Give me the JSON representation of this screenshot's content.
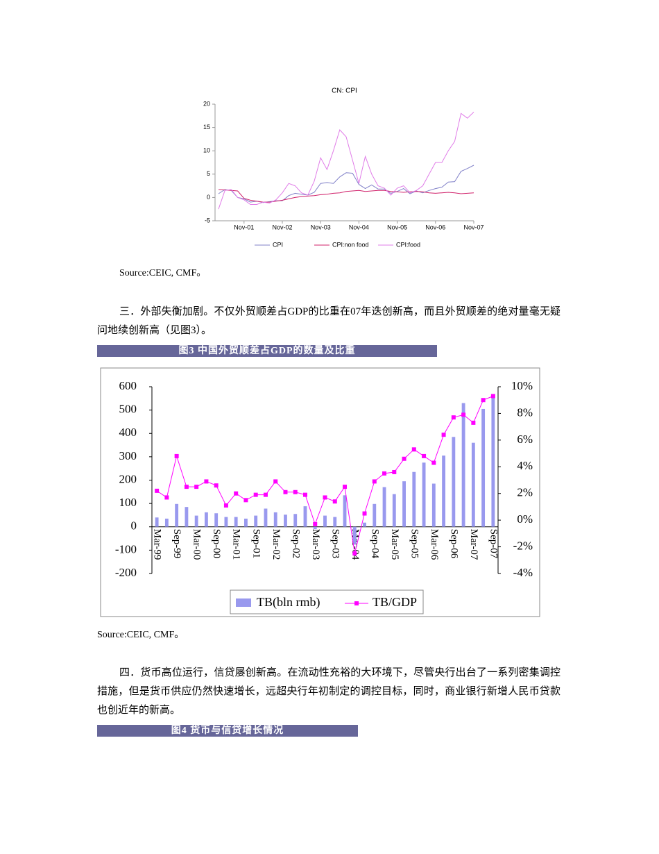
{
  "document": {
    "source_1": "Source:CEIC, CMF。",
    "paragraph_3": "三．外部失衡加剧。不仅外贸顺差占GDP的比重在07年迭创新高，而且外贸顺差的绝对量毫无疑问地续创新高（见图3）。",
    "figure_3_title": "图3 中国外贸顺差占GDP的数量及比重",
    "source_2": "Source:CEIC, CMF。",
    "paragraph_4": "四．货币高位运行，信贷屡创新高。在流动性充裕的大环境下，尽管央行出台了一系列密集调控措施，但是货币供应仍然快速增长，远超央行年初制定的调控目标，同时，商业银行新增人民币贷款也创近年的新高。",
    "figure_4_title": "图4 货币与信贷增长情况"
  },
  "chart_data": [
    {
      "type": "line",
      "title": "CN: CPI",
      "categories": [
        null,
        null,
        null,
        null,
        "Nov-01",
        null,
        null,
        null,
        null,
        null,
        "Nov-02",
        null,
        null,
        null,
        null,
        null,
        "Nov-03",
        null,
        null,
        null,
        null,
        null,
        "Nov-04",
        null,
        null,
        null,
        null,
        null,
        "Nov-05",
        null,
        null,
        null,
        null,
        null,
        "Nov-06",
        null,
        null,
        null,
        null,
        null,
        "Nov-07"
      ],
      "ylim": [
        -5,
        20
      ],
      "yticks": [
        -5,
        0,
        5,
        10,
        15,
        20
      ],
      "series": [
        {
          "name": "CPI",
          "color": "#8080c8",
          "values": [
            0.8,
            1.7,
            1.5,
            0,
            -0.3,
            -1,
            -0.8,
            -1.1,
            -0.9,
            -0.7,
            -0.7,
            0.4,
            0.9,
            0.7,
            0.5,
            1.1,
            3.0,
            3.2,
            3.0,
            4.4,
            5.3,
            5.2,
            2.8,
            1.9,
            2.7,
            1.8,
            1.8,
            0.9,
            1.3,
            1.9,
            0.8,
            1.4,
            1.0,
            1.5,
            1.9,
            2.2,
            3.3,
            3.4,
            5.6,
            6.2,
            6.9
          ]
        },
        {
          "name": "CPI:non food",
          "color": "#d0206a",
          "values": [
            1.7,
            1.6,
            1.5,
            1.4,
            -0.2,
            -0.6,
            -0.8,
            -1.0,
            -1.0,
            -0.8,
            -0.6,
            -0.3,
            0,
            0.2,
            0.3,
            0.4,
            0.6,
            0.7,
            0.9,
            1.0,
            1.3,
            1.4,
            1.5,
            1.3,
            1.4,
            1.5,
            1.5,
            1.3,
            1.2,
            1.1,
            1.2,
            1.3,
            1.2,
            1.0,
            0.9,
            1.0,
            1.1,
            1.0,
            0.8,
            0.9,
            1.0
          ]
        },
        {
          "name": "CPI:food",
          "color": "#e07ce8",
          "values": [
            -2.5,
            1.5,
            1.7,
            0,
            -0.5,
            -1.5,
            -1.5,
            -1.0,
            -1.2,
            -0.5,
            1.0,
            3.0,
            2.5,
            1.0,
            0.5,
            3.5,
            8.5,
            6,
            10,
            14.5,
            13,
            8,
            3,
            8.8,
            5,
            2.5,
            2,
            0.5,
            2,
            2.5,
            1.0,
            1.5,
            2.5,
            5,
            7.5,
            7.5,
            10,
            12,
            18,
            17,
            18.3
          ]
        }
      ]
    },
    {
      "type": "combo",
      "categories": [
        "Mar-99",
        null,
        "Sep-99",
        null,
        "Mar-00",
        null,
        "Sep-00",
        null,
        "Mar-01",
        null,
        "Sep-01",
        null,
        "Mar-02",
        null,
        "Sep-02",
        null,
        "Mar-03",
        null,
        "Sep-03",
        null,
        "Mar-04",
        null,
        "Sep-04",
        null,
        "Mar-05",
        null,
        "Sep-05",
        null,
        "Mar-06",
        null,
        "Sep-06",
        null,
        "Mar-07",
        null,
        "Sep-07"
      ],
      "ylim": [
        -200,
        600
      ],
      "yticks": [
        -200,
        -100,
        0,
        100,
        200,
        300,
        400,
        500,
        600
      ],
      "y2lim": [
        -4,
        10
      ],
      "y2ticks": [
        {
          "value": -4,
          "label": "-4%"
        },
        {
          "value": -2,
          "label": "-2%"
        },
        {
          "value": 0,
          "label": "0%"
        },
        {
          "value": 2,
          "label": "2%"
        },
        {
          "value": 4,
          "label": "4%"
        },
        {
          "value": 6,
          "label": "6%"
        },
        {
          "value": 8,
          "label": "8%"
        },
        {
          "value": 10,
          "label": "10%"
        }
      ],
      "series": [
        {
          "name": "TB(bln rmb)",
          "type": "bar",
          "color": "#9999ee",
          "values": [
            40,
            35,
            98,
            85,
            48,
            62,
            58,
            42,
            42,
            35,
            48,
            78,
            62,
            52,
            55,
            88,
            -10,
            48,
            42,
            135,
            -75,
            18,
            98,
            170,
            140,
            195,
            235,
            275,
            185,
            305,
            385,
            530,
            360,
            505,
            560
          ]
        },
        {
          "name": "TB/GDP",
          "type": "line",
          "axis": "y2",
          "color": "#ff00ff",
          "values": [
            2.2,
            1.7,
            4.8,
            2.5,
            2.5,
            2.9,
            2.6,
            1.1,
            2.0,
            1.5,
            1.9,
            1.9,
            2.9,
            2.1,
            2.1,
            1.9,
            -0.3,
            1.7,
            1.4,
            2.5,
            -2.5,
            0.5,
            2.9,
            3.5,
            3.6,
            4.6,
            5.3,
            4.8,
            4.3,
            6.4,
            7.7,
            7.9,
            7.3,
            9.0,
            9.3
          ]
        }
      ]
    }
  ]
}
